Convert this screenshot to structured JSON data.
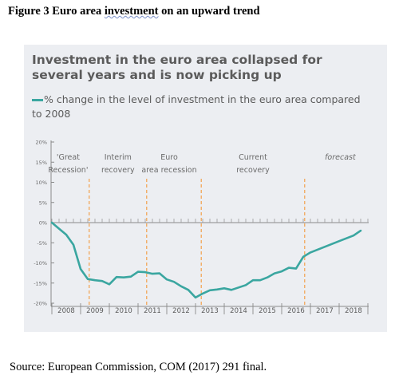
{
  "figure": {
    "caption_prefix": "Figure 3 Euro area ",
    "caption_underlined": "investment",
    "caption_suffix": " on an upward trend"
  },
  "source_note": "Source: European Commission, COM (2017) 291 final.",
  "chart_data": {
    "type": "line",
    "title": "Investment in the euro area collapsed for several years and is now picking up",
    "series": [
      {
        "name": "% change in the level of investment in the euro area compared to 2008",
        "color": "#3aa6a0",
        "x": [
          2008.0,
          2008.25,
          2008.5,
          2008.75,
          2009.0,
          2009.25,
          2009.5,
          2009.75,
          2010.0,
          2010.25,
          2010.5,
          2010.75,
          2011.0,
          2011.25,
          2011.5,
          2011.75,
          2012.0,
          2012.25,
          2012.5,
          2012.75,
          2013.0,
          2013.25,
          2013.5,
          2013.75,
          2014.0,
          2014.25,
          2014.5,
          2014.75,
          2015.0,
          2015.25,
          2015.5,
          2015.75,
          2016.0,
          2016.25,
          2016.5,
          2016.75,
          2017.0,
          2017.5,
          2018.0,
          2018.5,
          2018.75
        ],
        "values": [
          0,
          -1.5,
          -3,
          -5.5,
          -11.5,
          -14,
          -14.3,
          -14.5,
          -15.3,
          -13.5,
          -13.6,
          -13.4,
          -12.2,
          -12.3,
          -12.7,
          -12.6,
          -14.1,
          -14.7,
          -15.8,
          -16.7,
          -18.6,
          -17.6,
          -16.8,
          -16.6,
          -16.3,
          -16.7,
          -16.1,
          -15.5,
          -14.3,
          -14.3,
          -13.6,
          -12.6,
          -12.1,
          -11.2,
          -11.4,
          -8.5,
          -7.4,
          -6.0,
          -4.6,
          -3.2,
          -2.0
        ]
      }
    ],
    "x_categories": [
      "2008",
      "2009",
      "2010",
      "2011",
      "2012",
      "2013",
      "2014",
      "2015",
      "2016",
      "2017",
      "2018"
    ],
    "y_ticks": [
      "20%",
      "15%",
      "10%",
      "5%",
      "0%",
      "-5%",
      "-10%",
      "-15%",
      "-20%"
    ],
    "y_tick_values": [
      20,
      15,
      10,
      5,
      0,
      -5,
      -10,
      -15,
      -20
    ],
    "ylim": [
      -20,
      20
    ],
    "xlim": [
      2008.0,
      2019.0
    ],
    "phases": [
      {
        "label": "'Great Recession'",
        "start": 2008.0,
        "end": 2009.3
      },
      {
        "label": "Interim recovery",
        "start": 2009.3,
        "end": 2011.3
      },
      {
        "label": "Euro area recession",
        "start": 2011.3,
        "end": 2013.2
      },
      {
        "label": "Current recovery",
        "start": 2013.2,
        "end": 2016.8
      },
      {
        "label": "forecast",
        "start": 2016.8,
        "end": 2019.0
      }
    ],
    "phase_boundaries": [
      2009.3,
      2011.3,
      2013.2,
      2016.8
    ],
    "divider_color": "#f39a3c",
    "grid": false
  }
}
